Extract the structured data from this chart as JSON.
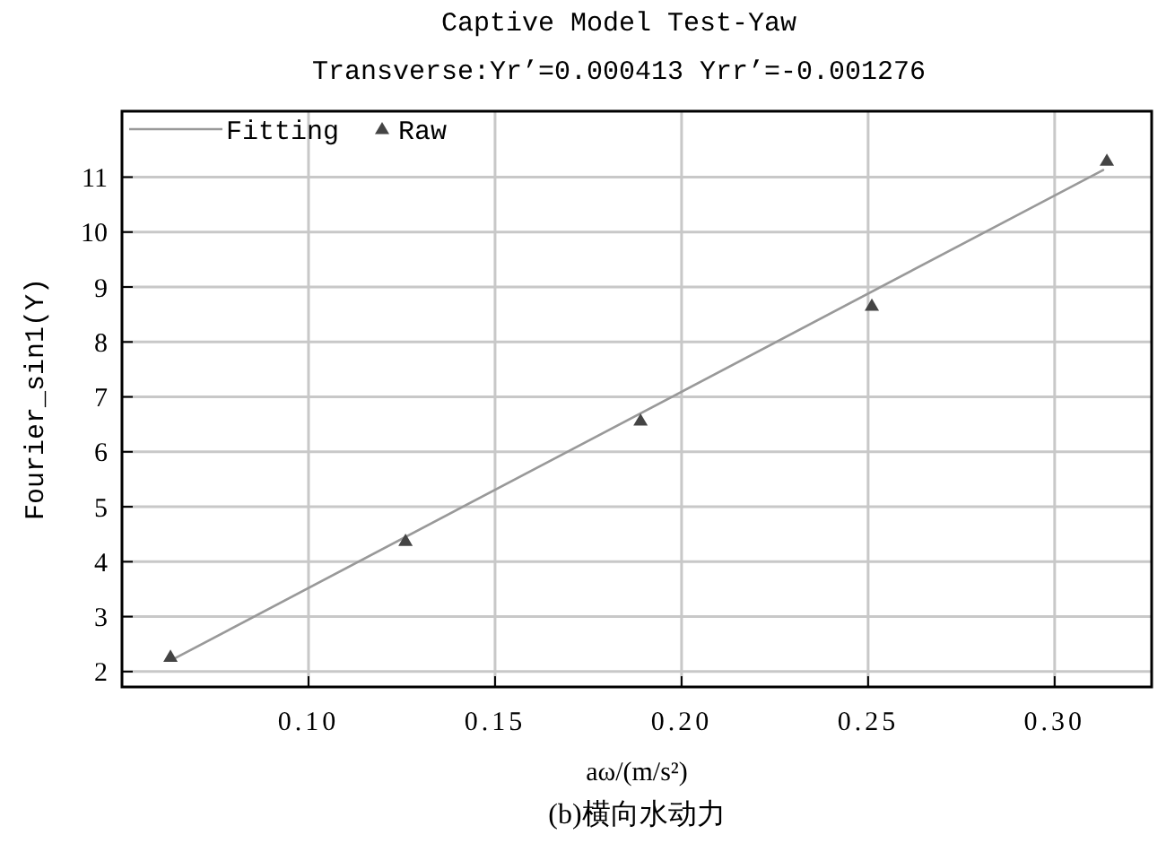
{
  "chart_data": {
    "type": "scatter",
    "title": "Captive Model Test-Yaw",
    "subtitle": "Transverse:Yr’=0.000413 Yrr’=-0.001276",
    "xlabel": "aω/(m/s²)",
    "ylabel": "Fourier_sin1(Y)",
    "annotations": [
      "(b)横向水动力"
    ],
    "series": [
      {
        "name": "Fitting",
        "type": "line",
        "color": "#999999",
        "x": [
          0.063,
          0.313
        ],
        "values": [
          2.2,
          11.13
        ],
        "marker": "none",
        "line_style": "solid"
      },
      {
        "name": "Raw",
        "color": "#444444",
        "x": [
          0.063,
          0.126,
          0.189,
          0.251,
          0.314
        ],
        "values": [
          2.27,
          4.38,
          6.57,
          8.66,
          11.3
        ],
        "marker": "triangle"
      }
    ],
    "xlim": [
      0.05,
      0.326
    ],
    "xticks": [
      {
        "value": 0.1,
        "label": "0.10"
      },
      {
        "value": 0.15,
        "label": "0.15"
      },
      {
        "value": 0.2,
        "label": "0.20"
      },
      {
        "value": 0.25,
        "label": "0.25"
      },
      {
        "value": 0.3,
        "label": "0.30"
      }
    ],
    "ylim": [
      1.72,
      12.2
    ],
    "yticks": [
      2,
      3,
      4,
      5,
      6,
      7,
      8,
      9,
      10,
      11
    ],
    "grid": true,
    "legend": "top left"
  }
}
